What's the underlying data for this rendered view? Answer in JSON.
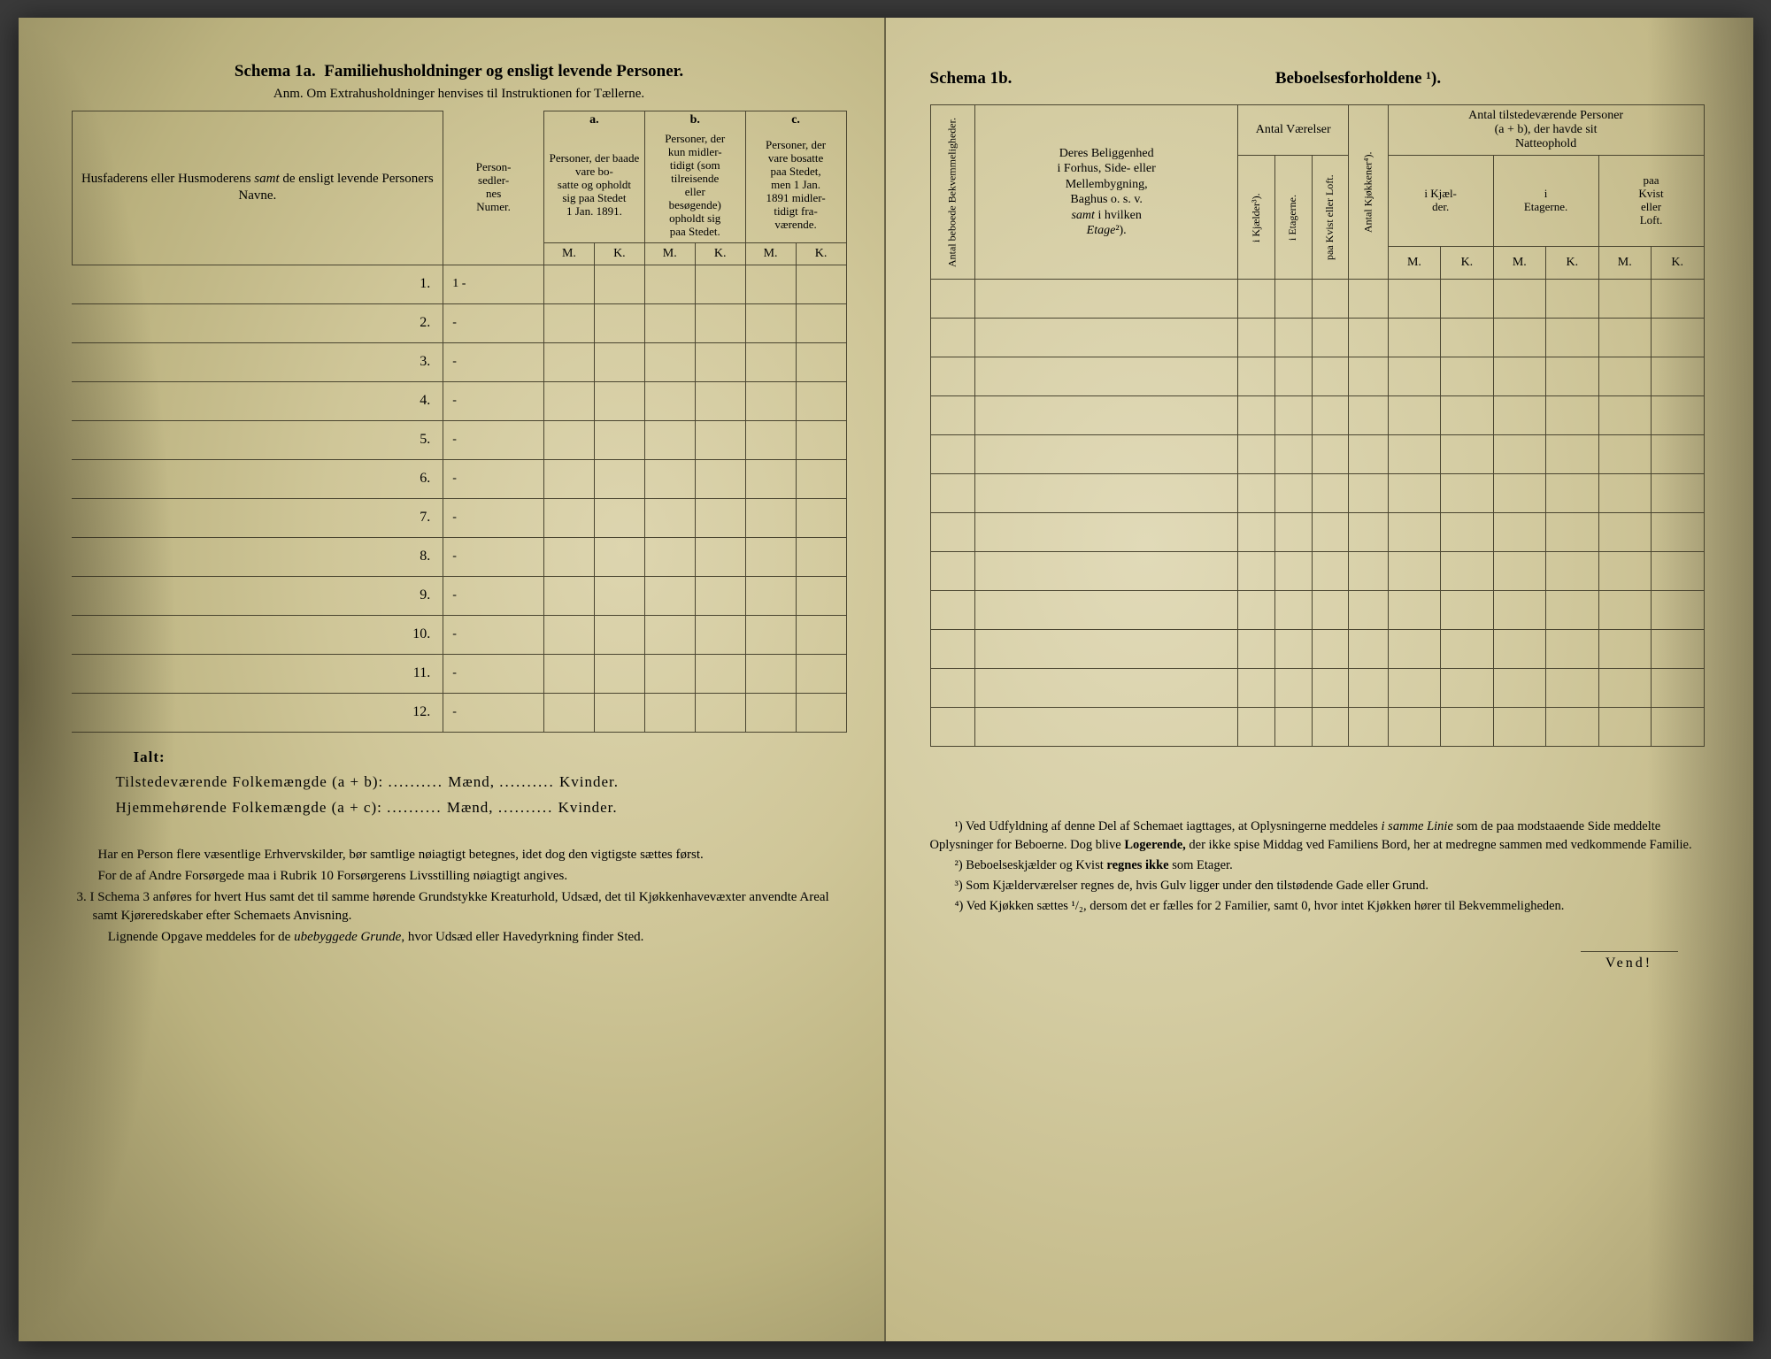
{
  "left_page": {
    "title_prefix": "Schema 1a.",
    "title_main": "Familiehusholdninger og ensligt levende Personer.",
    "anm": "Anm. Om Extrahusholdninger henvises til Instruktionen for Tællerne.",
    "col_names": {
      "names_header": "Husfaderens eller Husmoderens samt de ensligt levende Personers Navne.",
      "person_sedler": "Person-\nsedler-\nnes\nNumer.",
      "a_letter": "a.",
      "a_desc": "Personer, der baade vare bosatte og opholdt sig paa Stedet 1 Jan. 1891.",
      "b_letter": "b.",
      "b_desc": "Personer, der kun midler-tidigt (som tilreisende eller besøgende) opholdt sig paa Stedet.",
      "c_letter": "c.",
      "c_desc": "Personer, der vare bosatte paa Stedet, men 1 Jan. 1891 midler-tidigt fra-værende.",
      "M": "M.",
      "K": "K."
    },
    "rows": [
      {
        "num": "1.",
        "sedler": "1 -"
      },
      {
        "num": "2.",
        "sedler": "-"
      },
      {
        "num": "3.",
        "sedler": "-"
      },
      {
        "num": "4.",
        "sedler": "-"
      },
      {
        "num": "5.",
        "sedler": "-"
      },
      {
        "num": "6.",
        "sedler": "-"
      },
      {
        "num": "7.",
        "sedler": "-"
      },
      {
        "num": "8.",
        "sedler": "-"
      },
      {
        "num": "9.",
        "sedler": "-"
      },
      {
        "num": "10.",
        "sedler": "-"
      },
      {
        "num": "11.",
        "sedler": "-"
      },
      {
        "num": "12.",
        "sedler": "-"
      }
    ],
    "totals": {
      "ialt": "Ialt:",
      "line1_label": "Tilstedeværende Folkemængde (a + b):",
      "line2_label": "Hjemmehørende Folkemængde (a + c):",
      "maend": "Mænd,",
      "kvinder": "Kvinder.",
      "dots": ".........."
    },
    "footer": {
      "p1": "Har en Person flere væsentlige Erhvervskilder, bør samtlige nøiagtigt betegnes, idet dog den vigtigste sættes først.",
      "p2": "For de af Andre Forsørgede maa i Rubrik 10 Forsørgerens Livsstilling nøiagtigt angives.",
      "p3": "3. I Schema 3 anføres for hvert Hus samt det til samme hørende Grundstykke Kreaturhold, Udsæd, det til Kjøkkenhavevæxter anvendte Areal samt Kjøreredskaber efter Schemaets Anvisning.",
      "p4": "Lignende Opgave meddeles for de ubebyggede Grunde, hvor Udsæd eller Havedyrkning finder Sted."
    }
  },
  "right_page": {
    "title_prefix": "Schema 1b.",
    "title_main": "Beboelsesforholdene ¹).",
    "headers": {
      "antal_bekv": "Antal beboede Bekvemmeligheder.",
      "beliggenhed": "Deres Beliggenhed i Forhus, Side- eller Mellembygning, Baghus o. s. v. samt i hvilken Etage²).",
      "antal_vaerelser": "Antal Værelser",
      "i_kjaelder_rot": "i Kjælder³).",
      "i_etagerne_rot": "i Etagerne.",
      "paa_kvist_rot": "paa Kvist eller Loft.",
      "antal_kjokkener": "Antal Kjøkkener⁴).",
      "antal_tilstede": "Antal tilstedeværende Personer (a + b), der havde sit Natteophold",
      "i_kjaelder": "i Kjæl-\nder.",
      "i_etagerne": "i\nEtagerne.",
      "paa_kvist": "paa Kvist eller Loft.",
      "M": "M.",
      "K": "K."
    },
    "row_count": 12,
    "footnotes": {
      "n1": "¹) Ved Udfyldning af denne Del af Schemaet iagttages, at Oplysningerne meddeles i samme Linie som de paa modstaaende Side meddelte Oplysninger for Beboerne. Dog blive Logerende, der ikke spise Middag ved Familiens Bord, her at medregne sammen med vedkommende Familie.",
      "n2": "²) Beboelseskjælder og Kvist regnes ikke som Etager.",
      "n3": "³) Som Kjælderværelser regnes de, hvis Gulv ligger under den tilstødende Gade eller Grund.",
      "n4": "⁴) Ved Kjøkken sættes ¹/₂, dersom det er fælles for 2 Familier, samt 0, hvor intet Kjøkken hører til Bekvemmeligheden."
    },
    "vend": "Vend!"
  },
  "colors": {
    "paper": "#d4cda8",
    "ink": "#3a3522",
    "border": "#4a4530"
  }
}
